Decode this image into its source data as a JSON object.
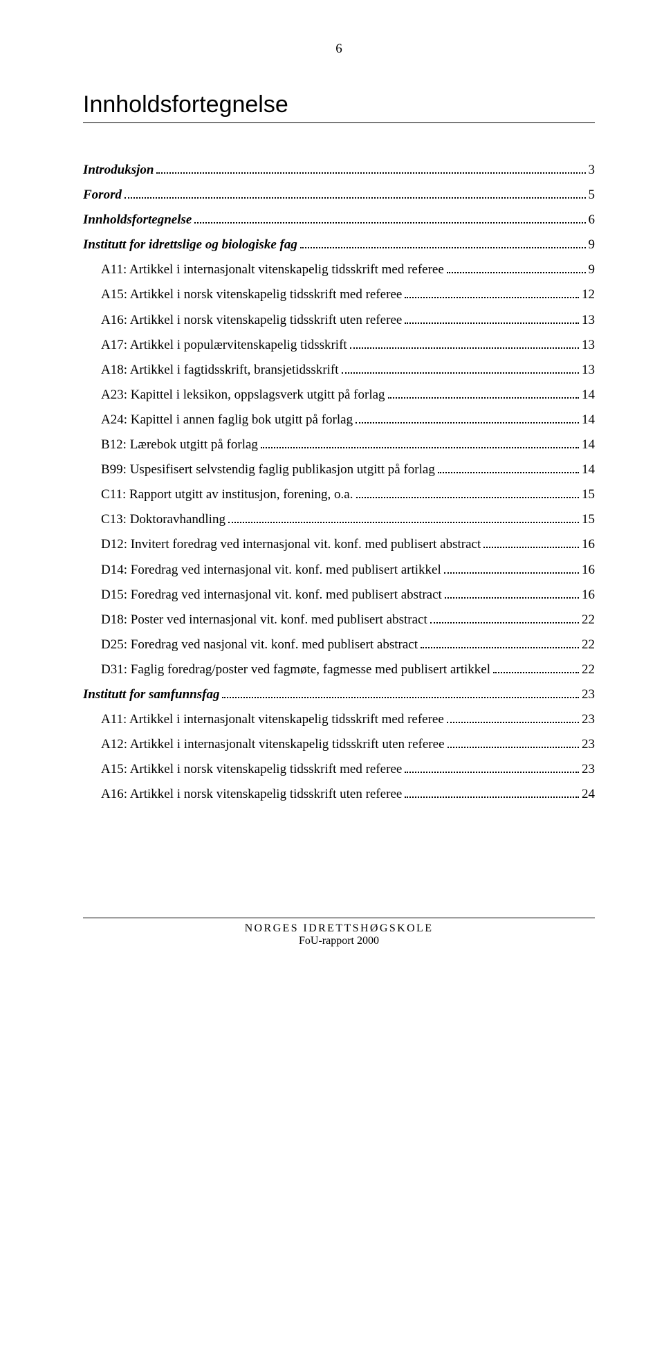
{
  "page_number": "6",
  "title": "Innholdsfortegnelse",
  "toc": [
    {
      "label": "Introduksjon",
      "page": "3",
      "style": "bold-italic",
      "indent": 0
    },
    {
      "label": "Forord",
      "page": "5",
      "style": "bold-italic",
      "indent": 0
    },
    {
      "label": "Innholdsfortegnelse",
      "page": "6",
      "style": "bold-italic",
      "indent": 0
    },
    {
      "label": "Institutt for idrettslige og biologiske fag",
      "page": "9",
      "style": "bold-italic",
      "indent": 0
    },
    {
      "label": "A11: Artikkel i internasjonalt vitenskapelig tidsskrift med referee",
      "page": "9",
      "style": "normal",
      "indent": 1
    },
    {
      "label": "A15: Artikkel i norsk vitenskapelig tidsskrift med referee",
      "page": "12",
      "style": "normal",
      "indent": 1
    },
    {
      "label": "A16: Artikkel i norsk vitenskapelig tidsskrift uten referee",
      "page": "13",
      "style": "normal",
      "indent": 1
    },
    {
      "label": "A17: Artikkel i populærvitenskapelig tidsskrift",
      "page": "13",
      "style": "normal",
      "indent": 1
    },
    {
      "label": "A18: Artikkel i fagtidsskrift, bransjetidsskrift",
      "page": "13",
      "style": "normal",
      "indent": 1
    },
    {
      "label": "A23: Kapittel i leksikon, oppslagsverk utgitt på forlag",
      "page": "14",
      "style": "normal",
      "indent": 1
    },
    {
      "label": "A24: Kapittel i annen faglig bok utgitt på forlag",
      "page": "14",
      "style": "normal",
      "indent": 1
    },
    {
      "label": "B12: Lærebok utgitt på forlag",
      "page": "14",
      "style": "normal",
      "indent": 1
    },
    {
      "label": "B99: Uspesifisert selvstendig faglig publikasjon utgitt på forlag",
      "page": "14",
      "style": "normal",
      "indent": 1
    },
    {
      "label": "C11: Rapport utgitt av institusjon, forening, o.a.",
      "page": "15",
      "style": "normal",
      "indent": 1
    },
    {
      "label": "C13: Doktoravhandling",
      "page": "15",
      "style": "normal",
      "indent": 1
    },
    {
      "label": "D12: Invitert foredrag ved internasjonal vit. konf. med publisert abstract",
      "page": "16",
      "style": "normal",
      "indent": 1
    },
    {
      "label": "D14: Foredrag ved internasjonal vit. konf. med publisert artikkel",
      "page": "16",
      "style": "normal",
      "indent": 1
    },
    {
      "label": "D15: Foredrag ved internasjonal vit. konf. med publisert abstract",
      "page": "16",
      "style": "normal",
      "indent": 1
    },
    {
      "label": "D18: Poster ved internasjonal vit. konf. med publisert abstract",
      "page": "22",
      "style": "normal",
      "indent": 1
    },
    {
      "label": "D25: Foredrag ved nasjonal vit. konf. med publisert abstract",
      "page": "22",
      "style": "normal",
      "indent": 1
    },
    {
      "label": "D31: Faglig foredrag/poster ved fagmøte, fagmesse med publisert artikkel",
      "page": "22",
      "style": "normal",
      "indent": 1
    },
    {
      "label": "Institutt for samfunnsfag",
      "page": "23",
      "style": "bold-italic",
      "indent": 0
    },
    {
      "label": "A11: Artikkel i internasjonalt vitenskapelig tidsskrift med referee",
      "page": "23",
      "style": "normal",
      "indent": 1
    },
    {
      "label": "A12: Artikkel i internasjonalt vitenskapelig tidsskrift uten referee",
      "page": "23",
      "style": "normal",
      "indent": 1
    },
    {
      "label": "A15: Artikkel i norsk vitenskapelig tidsskrift med referee",
      "page": "23",
      "style": "normal",
      "indent": 1
    },
    {
      "label": "A16: Artikkel i norsk vitenskapelig tidsskrift uten referee",
      "page": "24",
      "style": "normal",
      "indent": 1
    }
  ],
  "footer_line1": "NORGES IDRETTSHØGSKOLE",
  "footer_line2": "FoU-rapport 2000"
}
